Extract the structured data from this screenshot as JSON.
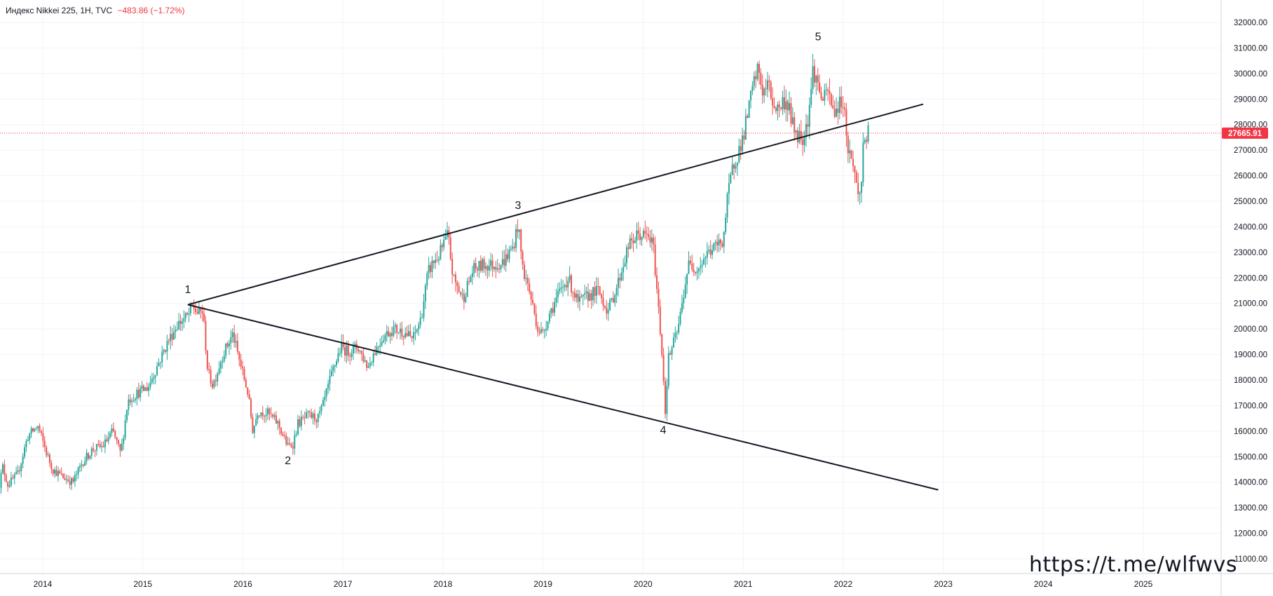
{
  "header": {
    "symbol_line": "Индекс Nikkei 225, 1H, TVC",
    "change": "−483.86 (−1.72%)"
  },
  "watermark": "https://t.me/wlfwvs",
  "price_label": "27665.91",
  "colors": {
    "up": "#26a69a",
    "down": "#ef5350",
    "price_line": "#f23645",
    "grid": "#f0f3fa",
    "trendline": "#131722"
  },
  "chart_data": {
    "type": "candlestick",
    "title": "Индекс Nikkei 225, 1H, TVC",
    "ylim": [
      10400,
      32500
    ],
    "xlim": [
      2013.55,
      2026.3
    ],
    "y_ticks": [
      "11000.00",
      "12000.00",
      "13000.00",
      "14000.00",
      "15000.00",
      "16000.00",
      "17000.00",
      "18000.00",
      "19000.00",
      "20000.00",
      "21000.00",
      "22000.00",
      "23000.00",
      "24000.00",
      "25000.00",
      "26000.00",
      "27000.00",
      "28000.00",
      "29000.00",
      "30000.00",
      "31000.00",
      "32000.00"
    ],
    "x_ticks": [
      "2014",
      "2015",
      "2016",
      "2017",
      "2018",
      "2019",
      "2020",
      "2021",
      "2022",
      "2023",
      "2024",
      "2025"
    ],
    "last_price": 27665.91,
    "price_path": [
      [
        2013.55,
        13600
      ],
      [
        2013.6,
        14600
      ],
      [
        2013.65,
        13900
      ],
      [
        2013.75,
        14300
      ],
      [
        2013.85,
        15800
      ],
      [
        2013.95,
        16200
      ],
      [
        2014.05,
        15000
      ],
      [
        2014.1,
        14500
      ],
      [
        2014.2,
        14200
      ],
      [
        2014.3,
        14000
      ],
      [
        2014.4,
        14800
      ],
      [
        2014.5,
        15300
      ],
      [
        2014.6,
        15400
      ],
      [
        2014.7,
        16000
      ],
      [
        2014.78,
        15100
      ],
      [
        2014.85,
        17200
      ],
      [
        2014.95,
        17500
      ],
      [
        2015.05,
        17700
      ],
      [
        2015.15,
        18600
      ],
      [
        2015.25,
        19500
      ],
      [
        2015.35,
        20200
      ],
      [
        2015.45,
        20500
      ],
      [
        2015.5,
        20900
      ],
      [
        2015.55,
        20600
      ],
      [
        2015.6,
        20700
      ],
      [
        2015.65,
        18300
      ],
      [
        2015.7,
        17800
      ],
      [
        2015.8,
        19000
      ],
      [
        2015.9,
        19800
      ],
      [
        2015.95,
        19000
      ],
      [
        2016.05,
        17500
      ],
      [
        2016.1,
        16000
      ],
      [
        2016.15,
        16800
      ],
      [
        2016.25,
        16700
      ],
      [
        2016.35,
        16300
      ],
      [
        2016.45,
        15400
      ],
      [
        2016.5,
        15500
      ],
      [
        2016.55,
        16300
      ],
      [
        2016.65,
        16600
      ],
      [
        2016.75,
        16500
      ],
      [
        2016.8,
        17000
      ],
      [
        2016.85,
        17700
      ],
      [
        2016.9,
        18400
      ],
      [
        2016.98,
        19300
      ],
      [
        2017.05,
        19100
      ],
      [
        2017.15,
        19300
      ],
      [
        2017.25,
        18500
      ],
      [
        2017.3,
        19000
      ],
      [
        2017.4,
        19700
      ],
      [
        2017.5,
        20000
      ],
      [
        2017.6,
        19900
      ],
      [
        2017.7,
        19600
      ],
      [
        2017.78,
        20400
      ],
      [
        2017.85,
        22200
      ],
      [
        2017.9,
        22600
      ],
      [
        2017.95,
        22800
      ],
      [
        2018.05,
        23700
      ],
      [
        2018.1,
        22000
      ],
      [
        2018.2,
        21200
      ],
      [
        2018.3,
        22300
      ],
      [
        2018.4,
        22500
      ],
      [
        2018.5,
        22500
      ],
      [
        2018.6,
        22600
      ],
      [
        2018.7,
        23200
      ],
      [
        2018.75,
        24100
      ],
      [
        2018.8,
        22300
      ],
      [
        2018.85,
        21700
      ],
      [
        2018.95,
        20000
      ],
      [
        2019.0,
        19800
      ],
      [
        2019.05,
        20500
      ],
      [
        2019.15,
        21300
      ],
      [
        2019.25,
        22000
      ],
      [
        2019.35,
        21000
      ],
      [
        2019.45,
        21300
      ],
      [
        2019.55,
        21500
      ],
      [
        2019.65,
        20700
      ],
      [
        2019.75,
        21800
      ],
      [
        2019.85,
        23200
      ],
      [
        2019.95,
        23700
      ],
      [
        2020.05,
        23600
      ],
      [
        2020.1,
        23300
      ],
      [
        2020.15,
        21000
      ],
      [
        2020.2,
        18500
      ],
      [
        2020.22,
        16600
      ],
      [
        2020.25,
        18800
      ],
      [
        2020.35,
        20000
      ],
      [
        2020.45,
        22500
      ],
      [
        2020.55,
        22400
      ],
      [
        2020.65,
        23000
      ],
      [
        2020.75,
        23300
      ],
      [
        2020.8,
        23500
      ],
      [
        2020.85,
        25300
      ],
      [
        2020.9,
        26400
      ],
      [
        2020.95,
        26900
      ],
      [
        2021.0,
        27500
      ],
      [
        2021.05,
        28500
      ],
      [
        2021.1,
        29500
      ],
      [
        2021.15,
        30200
      ],
      [
        2021.2,
        29200
      ],
      [
        2021.25,
        29600
      ],
      [
        2021.3,
        28800
      ],
      [
        2021.35,
        28600
      ],
      [
        2021.4,
        28900
      ],
      [
        2021.45,
        28800
      ],
      [
        2021.5,
        27900
      ],
      [
        2021.55,
        27600
      ],
      [
        2021.6,
        27500
      ],
      [
        2021.65,
        28300
      ],
      [
        2021.7,
        30200
      ],
      [
        2021.75,
        29500
      ],
      [
        2021.8,
        28900
      ],
      [
        2021.85,
        29300
      ],
      [
        2021.9,
        28500
      ],
      [
        2021.95,
        28700
      ],
      [
        2022.0,
        29000
      ],
      [
        2022.05,
        27000
      ],
      [
        2022.1,
        26500
      ],
      [
        2022.15,
        25200
      ],
      [
        2022.18,
        25500
      ],
      [
        2022.2,
        27300
      ],
      [
        2022.25,
        27665
      ]
    ],
    "trendlines": [
      {
        "from": [
          2015.45,
          20950
        ],
        "to": [
          2022.8,
          28800
        ]
      },
      {
        "from": [
          2015.45,
          20950
        ],
        "to": [
          2022.95,
          13700
        ]
      }
    ],
    "annotations": [
      {
        "text": "1",
        "x": 2015.45,
        "y": 21400
      },
      {
        "text": "2",
        "x": 2016.45,
        "y": 14700
      },
      {
        "text": "3",
        "x": 2018.75,
        "y": 24700
      },
      {
        "text": "4",
        "x": 2020.2,
        "y": 15900
      },
      {
        "text": "5",
        "x": 2021.75,
        "y": 31300
      }
    ]
  }
}
